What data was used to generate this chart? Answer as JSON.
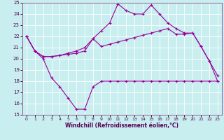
{
  "bg_color": "#c8eef0",
  "line_color": "#990099",
  "grid_color": "#ffffff",
  "xlim": [
    -0.5,
    23.5
  ],
  "ylim": [
    15,
    25
  ],
  "xticks": [
    0,
    1,
    2,
    3,
    4,
    5,
    6,
    7,
    8,
    9,
    10,
    11,
    12,
    13,
    14,
    15,
    16,
    17,
    18,
    19,
    20,
    21,
    22,
    23
  ],
  "yticks": [
    15,
    16,
    17,
    18,
    19,
    20,
    21,
    22,
    23,
    24,
    25
  ],
  "xlabel": "Windchill (Refroidissement éolien,°C)",
  "line1_x": [
    0,
    1,
    2,
    3,
    4,
    5,
    6,
    7,
    8,
    9,
    10,
    11,
    12,
    13,
    14,
    15,
    16,
    17,
    18,
    19,
    20,
    21,
    22,
    23
  ],
  "line1_y": [
    22,
    20.7,
    20.0,
    18.3,
    17.5,
    16.5,
    15.5,
    15.5,
    17.5,
    18.0,
    18.0,
    18.0,
    18.0,
    18.0,
    18.0,
    18.0,
    18.0,
    18.0,
    18.0,
    18.0,
    18.0,
    18.0,
    18.0,
    18.0
  ],
  "line2_x": [
    0,
    1,
    2,
    3,
    4,
    5,
    6,
    7,
    8,
    9,
    10,
    11,
    12,
    13,
    14,
    15,
    16,
    17,
    18,
    19,
    20,
    21,
    22,
    23
  ],
  "line2_y": [
    22,
    20.7,
    20.2,
    20.2,
    20.3,
    20.4,
    20.5,
    20.7,
    21.8,
    21.1,
    21.3,
    21.5,
    21.7,
    21.9,
    22.1,
    22.3,
    22.5,
    22.7,
    22.2,
    22.2,
    22.3,
    21.1,
    19.8,
    18.0
  ],
  "line3_x": [
    0,
    1,
    2,
    3,
    4,
    5,
    6,
    7,
    8,
    9,
    10,
    11,
    12,
    13,
    14,
    15,
    16,
    17,
    18,
    19,
    20,
    21,
    22,
    23
  ],
  "line3_y": [
    22,
    20.7,
    20.2,
    20.2,
    20.3,
    20.5,
    20.7,
    21.0,
    21.8,
    22.5,
    23.2,
    24.9,
    24.3,
    24.0,
    24.0,
    24.8,
    24.0,
    23.2,
    22.7,
    22.3,
    22.3,
    21.1,
    19.8,
    18.5
  ]
}
